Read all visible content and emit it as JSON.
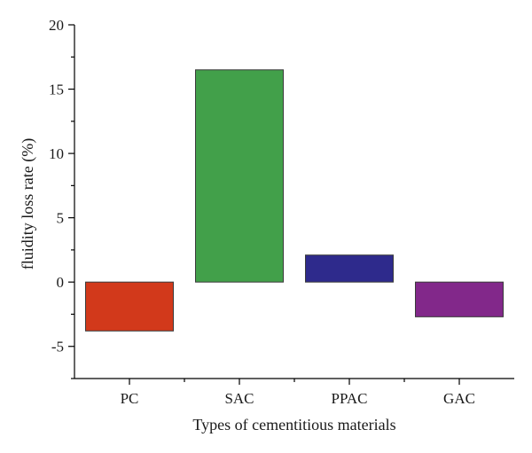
{
  "chart_data": {
    "type": "bar",
    "xlabel": "Types of cementitious materials",
    "ylabel": "fluidity loss rate (%)",
    "categories": [
      "PC",
      "SAC",
      "PPAC",
      "GAC"
    ],
    "values": [
      -3.8,
      16.5,
      2.1,
      -2.7
    ],
    "colors": [
      "#d2391b",
      "#42a04a",
      "#2e2a8c",
      "#82288a"
    ],
    "ylim": [
      -7.5,
      20
    ],
    "yticks": [
      20,
      15,
      10,
      5,
      0,
      -5
    ],
    "ytick_labels": [
      "20",
      "15",
      "10",
      "5",
      "0",
      "-5"
    ],
    "grid": false,
    "legend": "none"
  }
}
